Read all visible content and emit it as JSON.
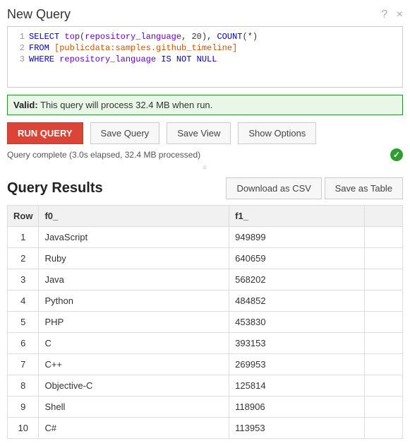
{
  "header": {
    "title": "New Query",
    "help_icon": "?",
    "close_icon": "×"
  },
  "editor": {
    "lines": [
      {
        "n": 1,
        "tokens": [
          {
            "t": "SELECT",
            "c": "kw"
          },
          {
            "t": " ",
            "c": "plain"
          },
          {
            "t": "top",
            "c": "fn"
          },
          {
            "t": "(",
            "c": "plain"
          },
          {
            "t": "repository_language",
            "c": "fn"
          },
          {
            "t": ", ",
            "c": "plain"
          },
          {
            "t": "20",
            "c": "plain"
          },
          {
            "t": "), ",
            "c": "plain"
          },
          {
            "t": "COUNT",
            "c": "kw"
          },
          {
            "t": "(*)",
            "c": "plain"
          }
        ]
      },
      {
        "n": 2,
        "tokens": [
          {
            "t": "FROM",
            "c": "kw"
          },
          {
            "t": " ",
            "c": "plain"
          },
          {
            "t": "[publicdata:samples.github_timeline]",
            "c": "tbl"
          }
        ]
      },
      {
        "n": 3,
        "tokens": [
          {
            "t": "WHERE",
            "c": "kw"
          },
          {
            "t": " ",
            "c": "plain"
          },
          {
            "t": "repository_language",
            "c": "fn"
          },
          {
            "t": " ",
            "c": "plain"
          },
          {
            "t": "IS NOT NULL",
            "c": "kw"
          }
        ]
      }
    ]
  },
  "valid": {
    "label": "Valid:",
    "text": " This query will process 32.4 MB when run."
  },
  "buttons": {
    "run": "RUN QUERY",
    "save_query": "Save Query",
    "save_view": "Save View",
    "show_options": "Show Options"
  },
  "status": {
    "text": "Query complete (3.0s elapsed, 32.4 MB processed)"
  },
  "results": {
    "title": "Query Results",
    "download_csv": "Download as CSV",
    "save_table": "Save as Table",
    "columns": [
      "Row",
      "f0_",
      "f1_",
      ""
    ],
    "rows": [
      [
        "1",
        "JavaScript",
        "949899"
      ],
      [
        "2",
        "Ruby",
        "640659"
      ],
      [
        "3",
        "Java",
        "568202"
      ],
      [
        "4",
        "Python",
        "484852"
      ],
      [
        "5",
        "PHP",
        "453830"
      ],
      [
        "6",
        "C",
        "393153"
      ],
      [
        "7",
        "C++",
        "269953"
      ],
      [
        "8",
        "Objective-C",
        "125814"
      ],
      [
        "9",
        "Shell",
        "118906"
      ],
      [
        "10",
        "C#",
        "113953"
      ]
    ]
  }
}
